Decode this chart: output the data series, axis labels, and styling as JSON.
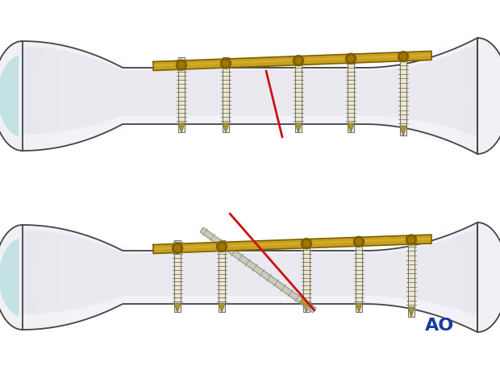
{
  "background_color": "#ffffff",
  "ao_text": "AO",
  "ao_color": "#1a3a9e",
  "ao_fontsize": 16,
  "bone_color_light": "#f0f0f5",
  "bone_color_mid": "#e0e0ea",
  "bone_edge_color": "#444444",
  "plate_color": "#c8a020",
  "plate_color_light": "#e0b830",
  "plate_edge_color": "#7a6000",
  "screw_color": "#ede8d5",
  "screw_edge_color": "#777760",
  "screw_tip_color": "#b09820",
  "fracture_color": "#cc1010",
  "lag_screw_color": "#999999",
  "teal_color": "#a8d8d8",
  "shadow_color": "#d0d0da"
}
